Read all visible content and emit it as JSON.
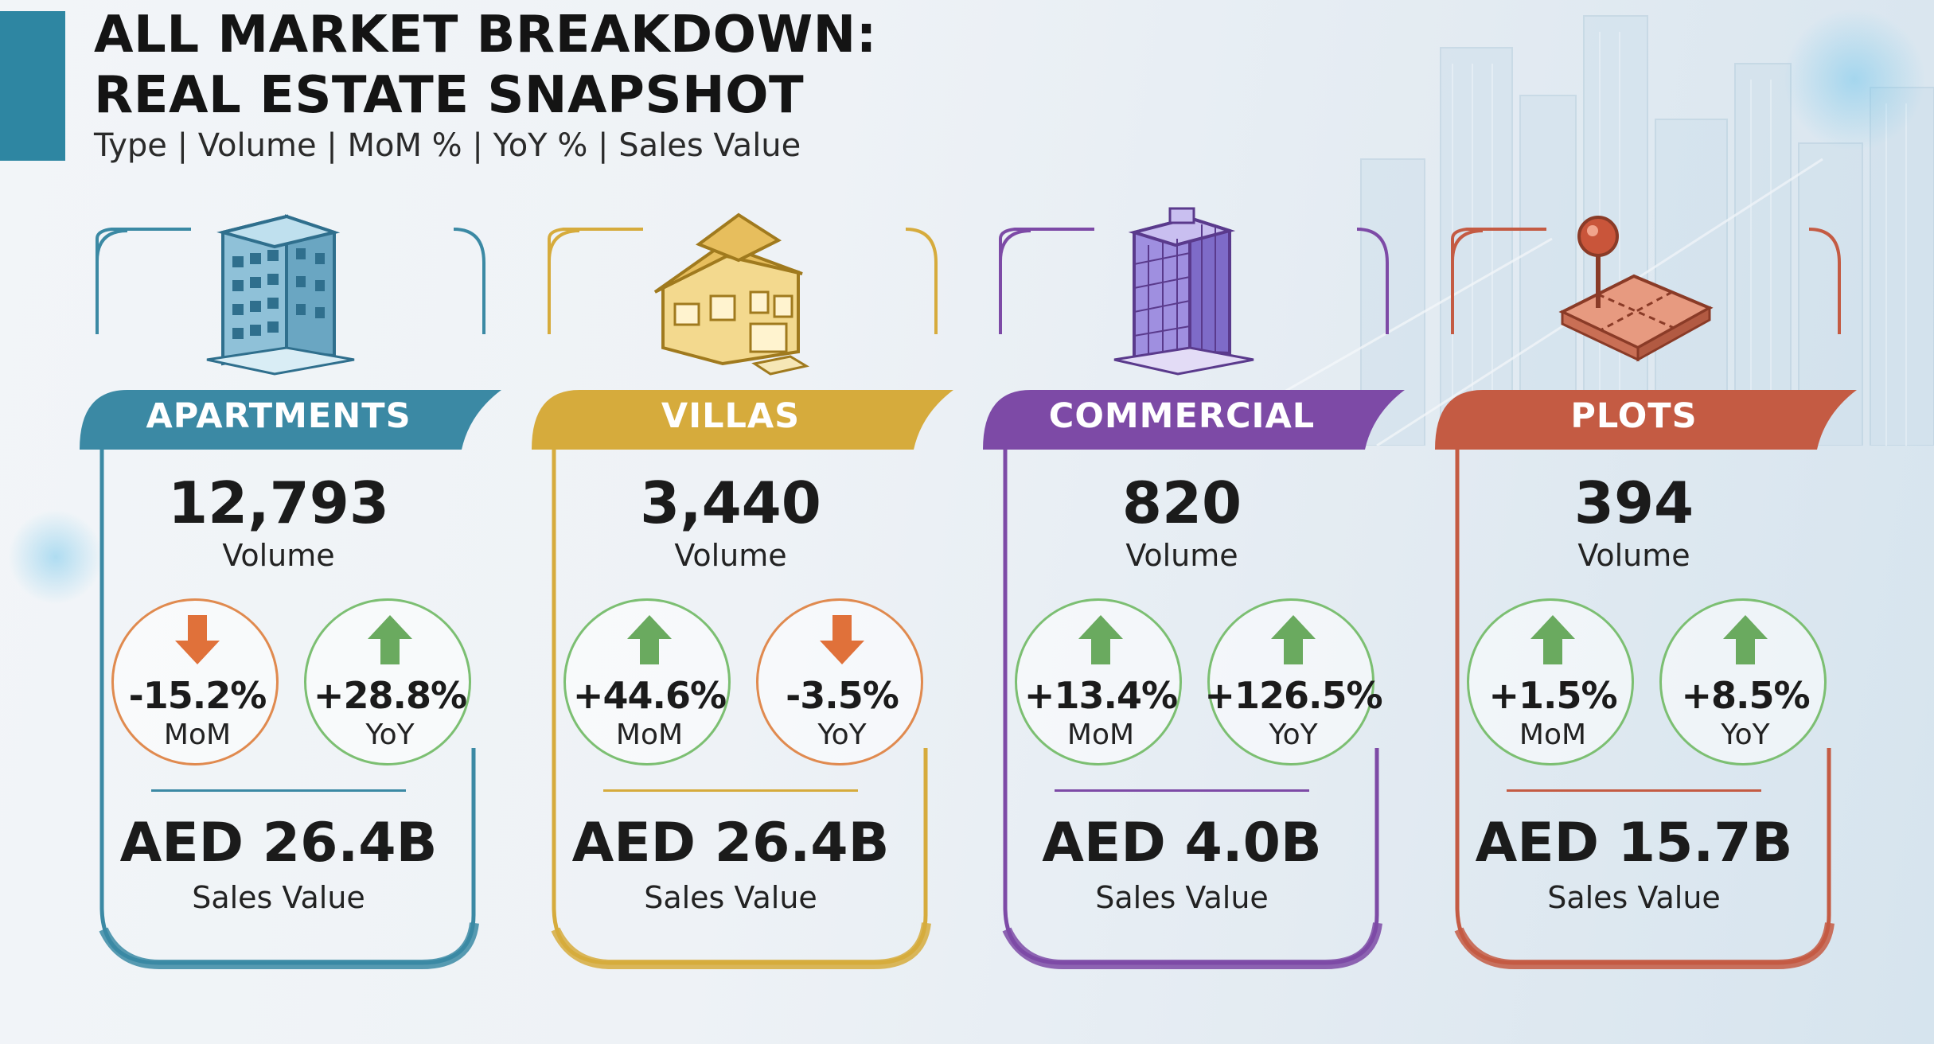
{
  "header": {
    "title_line1": "ALL MARKET BREAKDOWN:",
    "title_line2": "REAL ESTATE SNAPSHOT",
    "subtitle": "Type | Volume | MoM % | YoY % | Sales Value"
  },
  "cards": [
    {
      "label": "APARTMENTS",
      "color": "#3b89a4",
      "icon": "apartment-building-icon",
      "volume": "12,793",
      "volume_label": "Volume",
      "mom": {
        "value": "-15.2%",
        "label": "MoM",
        "direction": "down"
      },
      "yoy": {
        "value": "+28.8%",
        "label": "YoY",
        "direction": "up"
      },
      "sales": "AED 26.4B",
      "sales_label": "Sales Value"
    },
    {
      "label": "VILLAS",
      "color": "#d6ab3c",
      "icon": "villa-house-icon",
      "volume": "3,440",
      "volume_label": "Volume",
      "mom": {
        "value": "+44.6%",
        "label": "MoM",
        "direction": "up"
      },
      "yoy": {
        "value": "-3.5%",
        "label": "YoY",
        "direction": "down"
      },
      "sales": "AED 26.4B",
      "sales_label": "Sales Value"
    },
    {
      "label": "COMMERCIAL",
      "color": "#7d4aa6",
      "icon": "office-tower-icon",
      "volume": "820",
      "volume_label": "Volume",
      "mom": {
        "value": "+13.4%",
        "label": "MoM",
        "direction": "up"
      },
      "yoy": {
        "value": "+126.5%",
        "label": "YoY",
        "direction": "up"
      },
      "sales": "AED 4.0B",
      "sales_label": "Sales Value"
    },
    {
      "label": "PLOTS",
      "color": "#c45b43",
      "icon": "land-plot-pin-icon",
      "volume": "394",
      "volume_label": "Volume",
      "mom": {
        "value": "+1.5%",
        "label": "MoM",
        "direction": "up"
      },
      "yoy": {
        "value": "+8.5%",
        "label": "YoY",
        "direction": "up"
      },
      "sales": "AED 15.7B",
      "sales_label": "Sales Value"
    }
  ],
  "colors": {
    "up_arrow": "#6aaa5f",
    "down_arrow": "#e0713a"
  }
}
